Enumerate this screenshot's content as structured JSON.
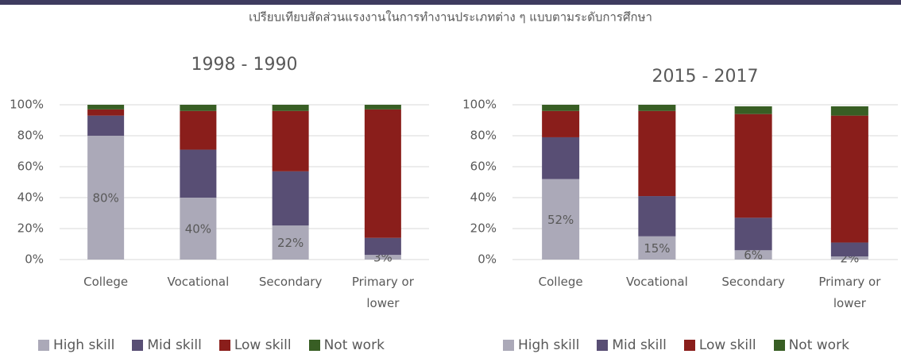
{
  "page_title": "เปรียบเทียบสัดส่วนแรงงานในการทำงานประเภทต่าง ๆ แบบตามระดับการศึกษา",
  "chart_data": [
    {
      "type": "stacked_bar",
      "title": "1998 - 1990",
      "categories": [
        "College",
        "Vocational",
        "Secondary",
        "Primary or lower"
      ],
      "ylim": [
        0,
        100
      ],
      "yticks": [
        {
          "value": 0,
          "label": "0%"
        },
        {
          "value": 20,
          "label": "20%"
        },
        {
          "value": 40,
          "label": "40%"
        },
        {
          "value": 60,
          "label": "60%"
        },
        {
          "value": 80,
          "label": "80%"
        },
        {
          "value": 100,
          "label": "100%"
        }
      ],
      "grid": true,
      "legend": "bottom",
      "series": [
        {
          "name": "High skill",
          "color": "#aba9b8",
          "values": [
            80,
            40,
            22,
            3
          ],
          "value_labels": [
            "80%",
            "40%",
            "22%",
            "3%"
          ]
        },
        {
          "name": "Mid skill",
          "color": "#584e74",
          "values": [
            13,
            31,
            35,
            11
          ]
        },
        {
          "name": "Low skill",
          "color": "#8a1e1b",
          "values": [
            4,
            25,
            39,
            83
          ]
        },
        {
          "name": "Not work",
          "color": "#385e24",
          "values": [
            3,
            4,
            4,
            3
          ]
        }
      ]
    },
    {
      "type": "stacked_bar",
      "title": "2015 - 2017",
      "categories": [
        "College",
        "Vocational",
        "Secondary",
        "Primary or lower"
      ],
      "ylim": [
        0,
        100
      ],
      "yticks": [
        {
          "value": 0,
          "label": "0%"
        },
        {
          "value": 20,
          "label": "20%"
        },
        {
          "value": 40,
          "label": "40%"
        },
        {
          "value": 60,
          "label": "60%"
        },
        {
          "value": 80,
          "label": "80%"
        },
        {
          "value": 100,
          "label": "100%"
        }
      ],
      "grid": true,
      "legend": "bottom",
      "series": [
        {
          "name": "High skill",
          "color": "#aba9b8",
          "values": [
            52,
            15,
            6,
            2
          ],
          "value_labels": [
            "52%",
            "15%",
            "6%",
            "2%"
          ]
        },
        {
          "name": "Mid skill",
          "color": "#584e74",
          "values": [
            27,
            26,
            21,
            9
          ]
        },
        {
          "name": "Low skill",
          "color": "#8a1e1b",
          "values": [
            17,
            55,
            67,
            82
          ]
        },
        {
          "name": "Not work",
          "color": "#385e24",
          "values": [
            4,
            4,
            5,
            6
          ]
        }
      ]
    }
  ]
}
